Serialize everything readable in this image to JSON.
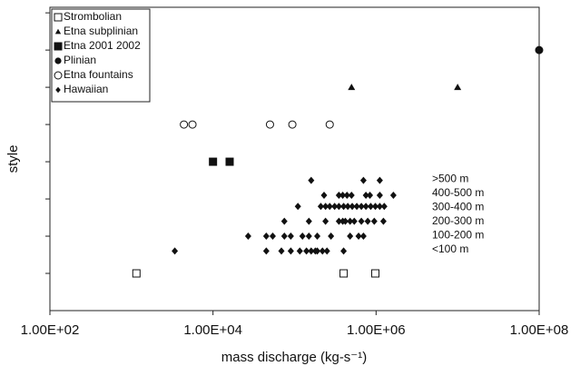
{
  "chart_data": {
    "type": "scatter",
    "x_label": "mass discharge (kg-s⁻¹)",
    "y_label": "style",
    "log_x": true,
    "xlim": [
      100,
      100000000
    ],
    "xticks": [
      {
        "value": 100,
        "label": "1.00E+02"
      },
      {
        "value": 10000,
        "label": "1.00E+04"
      },
      {
        "value": 1000000,
        "label": "1.00E+06"
      },
      {
        "value": 100000000,
        "label": "1.00E+08"
      }
    ],
    "ylim": [
      0,
      8.15
    ],
    "yticks": [
      1,
      2,
      3,
      4,
      5,
      6,
      7,
      8
    ],
    "legend": "upper left",
    "series": [
      {
        "name": "Strombolian",
        "marker": "square-open",
        "color": "#111111",
        "x": [
          1150,
          400000,
          980000
        ],
        "values": [
          1,
          1,
          1
        ]
      },
      {
        "name": "Etna subplinian",
        "marker": "triangle",
        "color": "#111111",
        "x": [
          500000,
          10000000
        ],
        "values": [
          6,
          6
        ]
      },
      {
        "name": "Etna 2001 2002",
        "marker": "square",
        "color": "#111111",
        "x": [
          10000,
          16000
        ],
        "values": [
          4,
          4
        ]
      },
      {
        "name": "Plinian",
        "marker": "circle",
        "color": "#111111",
        "x": [
          100000000
        ],
        "values": [
          7
        ]
      },
      {
        "name": "Etna fountains",
        "marker": "circle-open",
        "color": "#111111",
        "x": [
          4400,
          5600,
          50000,
          94000,
          270000
        ],
        "values": [
          5,
          5,
          5,
          5,
          5
        ]
      },
      {
        "name": "Hawaiian",
        "marker": "diamond",
        "color": "#111111",
        "x": [
          3400,
          45000,
          69000,
          90000,
          116000,
          140000,
          160000,
          180000,
          190000,
          220000,
          250000,
          400000,
          27000,
          45000,
          54000,
          75000,
          90000,
          125000,
          150000,
          190000,
          280000,
          480000,
          610000,
          700000,
          75000,
          150000,
          240000,
          350000,
          390000,
          420000,
          480000,
          540000,
          660000,
          790000,
          950000,
          1230000,
          110000,
          210000,
          240000,
          270000,
          310000,
          350000,
          400000,
          450000,
          510000,
          580000,
          660000,
          750000,
          860000,
          980000,
          1110000,
          1260000,
          230000,
          350000,
          390000,
          440000,
          500000,
          750000,
          840000,
          1110000,
          1630000,
          160000,
          700000,
          1110000
        ],
        "values": [
          1.6,
          1.6,
          1.6,
          1.6,
          1.6,
          1.6,
          1.6,
          1.6,
          1.6,
          1.6,
          1.6,
          1.6,
          2,
          2,
          2,
          2,
          2,
          2,
          2,
          2,
          2,
          2,
          2,
          2,
          2.4,
          2.4,
          2.4,
          2.4,
          2.4,
          2.4,
          2.4,
          2.4,
          2.4,
          2.4,
          2.4,
          2.4,
          2.8,
          2.8,
          2.8,
          2.8,
          2.8,
          2.8,
          2.8,
          2.8,
          2.8,
          2.8,
          2.8,
          2.8,
          2.8,
          2.8,
          2.8,
          2.8,
          3.1,
          3.1,
          3.1,
          3.1,
          3.1,
          3.1,
          3.1,
          3.1,
          3.1,
          3.5,
          3.5,
          3.5
        ]
      }
    ],
    "annotations": [
      "<100 m",
      "100-200 m",
      "200-300 m",
      "300-400 m",
      "400-500 m",
      ">500 m"
    ]
  }
}
